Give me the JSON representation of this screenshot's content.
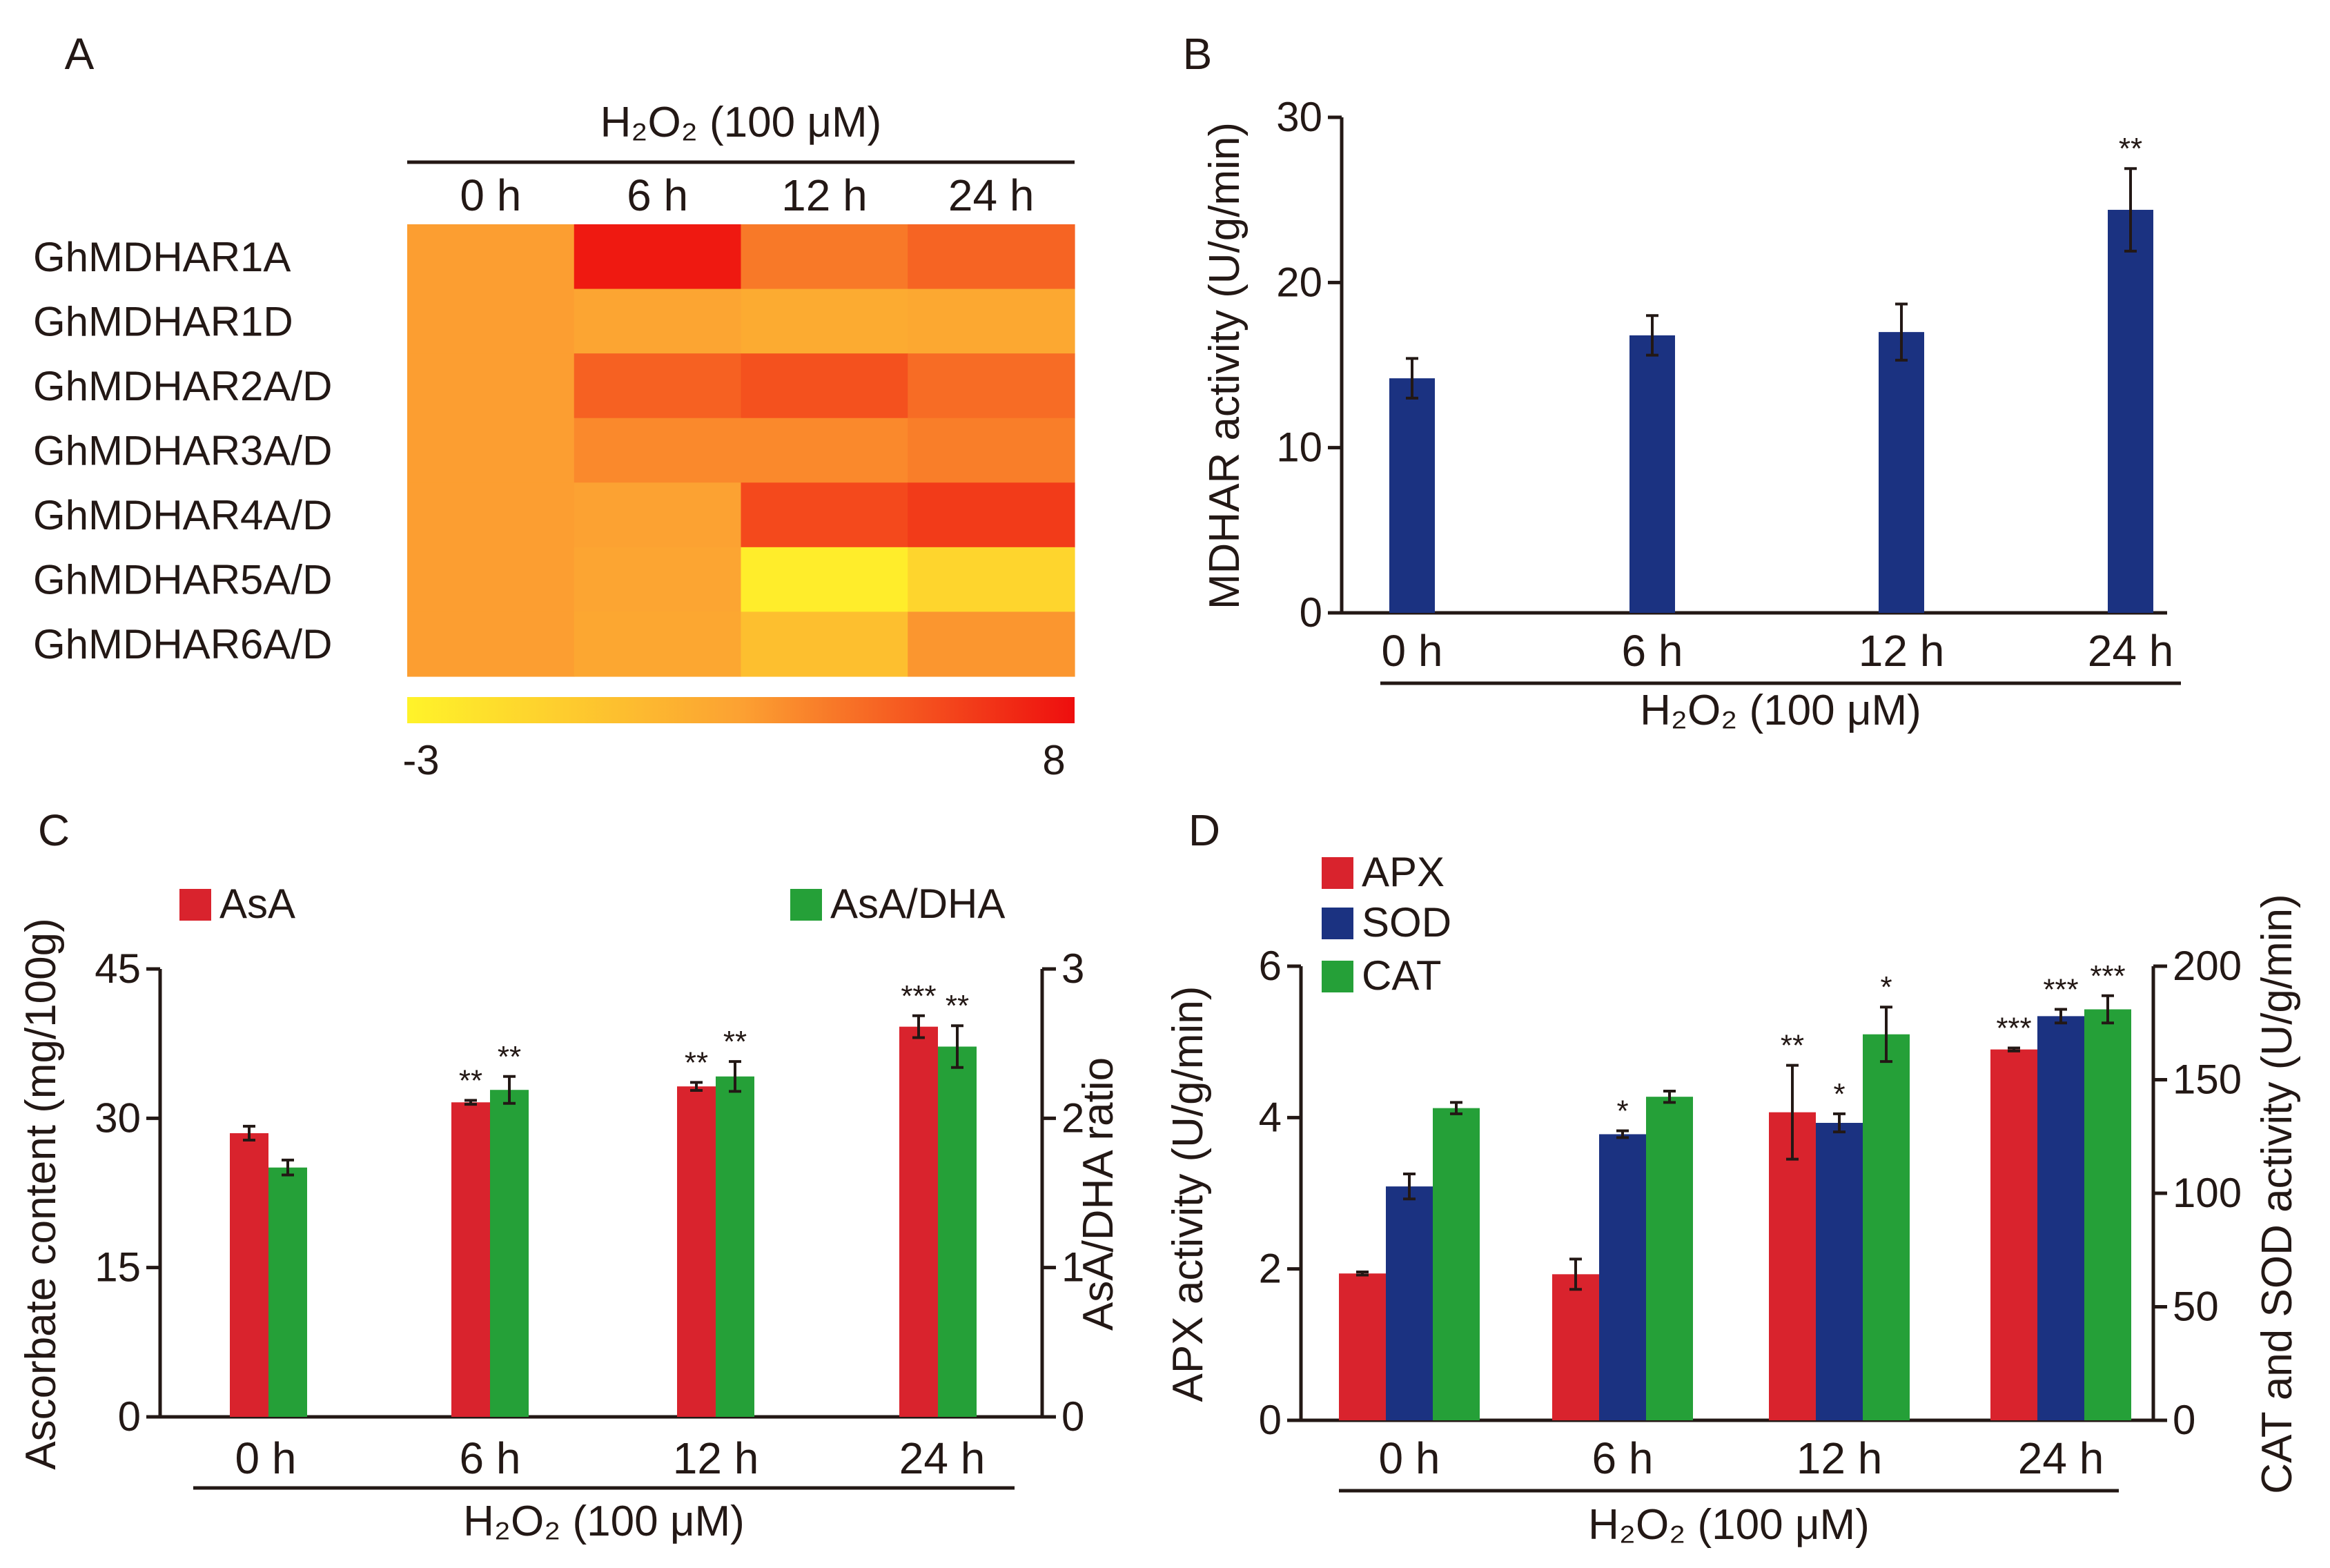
{
  "chart_data": [
    {
      "panel": "A",
      "type": "heatmap",
      "condition": "H₂O₂ (100 μM)",
      "columns": [
        "0 h",
        "6 h",
        "12 h",
        "24 h"
      ],
      "rows": [
        "GhMDHAR1A",
        "GhMDHAR1D",
        "GhMDHAR2A/D",
        "GhMDHAR3A/D",
        "GhMDHAR4A/D",
        "GhMDHAR5A/D",
        "GhMDHAR6A/D"
      ],
      "values": [
        [
          2.6,
          7.6,
          4.0,
          4.8
        ],
        [
          2.6,
          2.2,
          1.8,
          2.0
        ],
        [
          2.6,
          4.9,
          5.5,
          4.5
        ],
        [
          2.6,
          3.4,
          3.4,
          3.8
        ],
        [
          2.6,
          2.4,
          5.8,
          6.3
        ],
        [
          2.6,
          2.2,
          -2.6,
          -1.0
        ],
        [
          2.6,
          2.1,
          0.5,
          2.9
        ]
      ],
      "scale": {
        "min": -3,
        "max": 8,
        "min_label": "-3",
        "max_label": "8",
        "min_color": "#FFF32A",
        "mid_color": "#FCA132",
        "max_color": "#EE0E0E"
      }
    },
    {
      "panel": "B",
      "type": "bar",
      "condition": "H₂O₂ (100 μM)",
      "categories": [
        "0 h",
        "6 h",
        "12 h",
        "24 h"
      ],
      "values": [
        14.2,
        16.8,
        17.0,
        24.4
      ],
      "errors": [
        1.2,
        1.2,
        1.7,
        2.5
      ],
      "significance": [
        "",
        "",
        "",
        "**"
      ],
      "ylabel": "MDHAR activity (U/g/min)",
      "ylim": [
        0,
        30
      ],
      "yticks": [
        0,
        10,
        20,
        30
      ],
      "color": "#1B3281"
    },
    {
      "panel": "C",
      "type": "bar",
      "condition": "H₂O₂ (100 μM)",
      "categories": [
        "0 h",
        "6 h",
        "12 h",
        "24 h"
      ],
      "series": [
        {
          "name": "AsA",
          "axis": "left",
          "color": "#D9232D",
          "values": [
            28.5,
            31.6,
            33.2,
            39.2
          ],
          "errors": [
            0.7,
            0.2,
            0.4,
            1.1
          ],
          "significance": [
            "",
            "**",
            "**",
            "***"
          ]
        },
        {
          "name": "AsA/DHA",
          "axis": "right",
          "color": "#25A038",
          "values": [
            1.67,
            2.19,
            2.28,
            2.48
          ],
          "errors": [
            0.05,
            0.09,
            0.1,
            0.14
          ],
          "significance": [
            "",
            "**",
            "**",
            "**"
          ]
        }
      ],
      "ylabel_left": "Ascorbate content (mg/100g)",
      "ylim_left": [
        0,
        45
      ],
      "yticks_left": [
        0,
        15,
        30,
        45
      ],
      "ylabel_right": "AsA/DHA ratio",
      "ylim_right": [
        0,
        3
      ],
      "yticks_right": [
        0,
        1,
        2,
        3
      ],
      "legend": "top"
    },
    {
      "panel": "D",
      "type": "bar",
      "condition": "H₂O₂ (100 μM)",
      "categories": [
        "0 h",
        "6 h",
        "12 h",
        "24 h"
      ],
      "series": [
        {
          "name": "APX",
          "axis": "left",
          "color": "#D9232D",
          "values": [
            1.94,
            1.93,
            4.07,
            4.9
          ],
          "errors": [
            0.02,
            0.2,
            0.62,
            0.02
          ],
          "significance": [
            "",
            "",
            "**",
            "***"
          ]
        },
        {
          "name": "SOD",
          "axis": "right",
          "color": "#1B3281",
          "values": [
            103,
            126,
            131,
            178
          ],
          "errors": [
            5.5,
            1.5,
            4.0,
            3.0
          ],
          "significance": [
            "",
            "*",
            "*",
            "***"
          ]
        },
        {
          "name": "CAT",
          "axis": "right",
          "color": "#25A038",
          "values": [
            137.5,
            142.5,
            170,
            181
          ],
          "errors": [
            2.5,
            2.5,
            12,
            6
          ],
          "significance": [
            "",
            "",
            "*",
            "***"
          ]
        }
      ],
      "ylabel_left": "APX activity (U/g/min)",
      "ylim_left": [
        0,
        6
      ],
      "yticks_left": [
        0,
        2,
        4,
        6
      ],
      "ylabel_right": "CAT and SOD activity (U/g/min)",
      "ylim_right": [
        0,
        200
      ],
      "yticks_right": [
        0,
        50,
        100,
        150,
        200
      ],
      "legend": "top-left"
    }
  ]
}
